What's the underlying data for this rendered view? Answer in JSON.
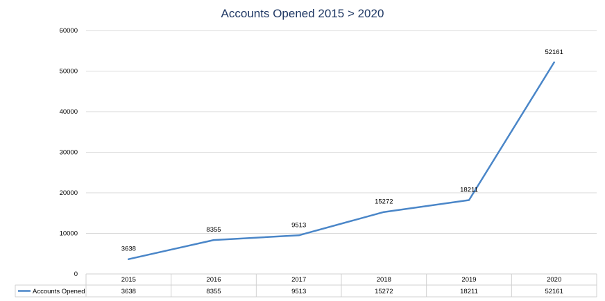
{
  "chart_data": {
    "type": "line",
    "title": "Accounts Opened 2015 > 2020",
    "categories": [
      "2015",
      "2016",
      "2017",
      "2018",
      "2019",
      "2020"
    ],
    "series": [
      {
        "name": "Accounts Opened",
        "values": [
          3638,
          8355,
          9513,
          15272,
          18211,
          52161
        ]
      }
    ],
    "y_ticks": [
      "0",
      "10000",
      "20000",
      "30000",
      "40000",
      "50000",
      "60000"
    ],
    "ylim": [
      0,
      60000
    ],
    "data_labels": [
      "3638",
      "8355",
      "9513",
      "15272",
      "18211",
      "52161"
    ],
    "data_table": {
      "header": [
        "2015",
        "2016",
        "2017",
        "2018",
        "2019",
        "2020"
      ],
      "row_label": "Accounts Opened",
      "row": [
        "3638",
        "8355",
        "9513",
        "15272",
        "18211",
        "52161"
      ]
    },
    "grid": true,
    "legend": "data-table",
    "colors": {
      "line": "#4a86c8",
      "grid": "#d9d9d9",
      "title": "#1f3864"
    }
  }
}
